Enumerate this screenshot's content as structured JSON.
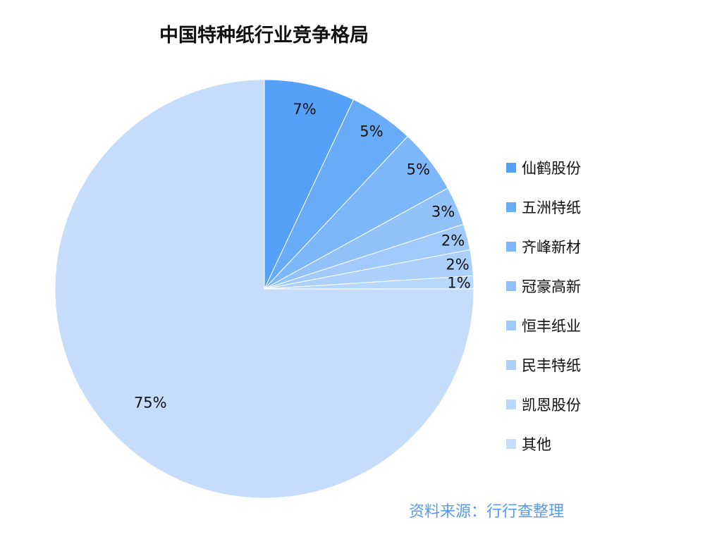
{
  "chart_data": {
    "type": "pie",
    "title": "中国特种纸行业竞争格局",
    "slices": [
      {
        "name": "仙鹤股份",
        "value": 7,
        "label": "7%",
        "color": "#55a1f8"
      },
      {
        "name": "五洲特纸",
        "value": 5,
        "label": "5%",
        "color": "#68acf8"
      },
      {
        "name": "齐峰新材",
        "value": 5,
        "label": "5%",
        "color": "#7db7f9"
      },
      {
        "name": "冠豪高新",
        "value": 3,
        "label": "3%",
        "color": "#91c2fa"
      },
      {
        "name": "恒丰纸业",
        "value": 2,
        "label": "2%",
        "color": "#a0caf9"
      },
      {
        "name": "民丰特纸",
        "value": 2,
        "label": "2%",
        "color": "#acd0fa"
      },
      {
        "name": "凯恩股份",
        "value": 1,
        "label": "1%",
        "color": "#b8d8fb"
      },
      {
        "name": "其他",
        "value": 75,
        "label": "75%",
        "color": "#c5ddfb"
      }
    ],
    "legend_position": "right",
    "start_angle": "12 o'clock",
    "direction": "clockwise"
  },
  "source_note": "资料来源：行行查整理"
}
